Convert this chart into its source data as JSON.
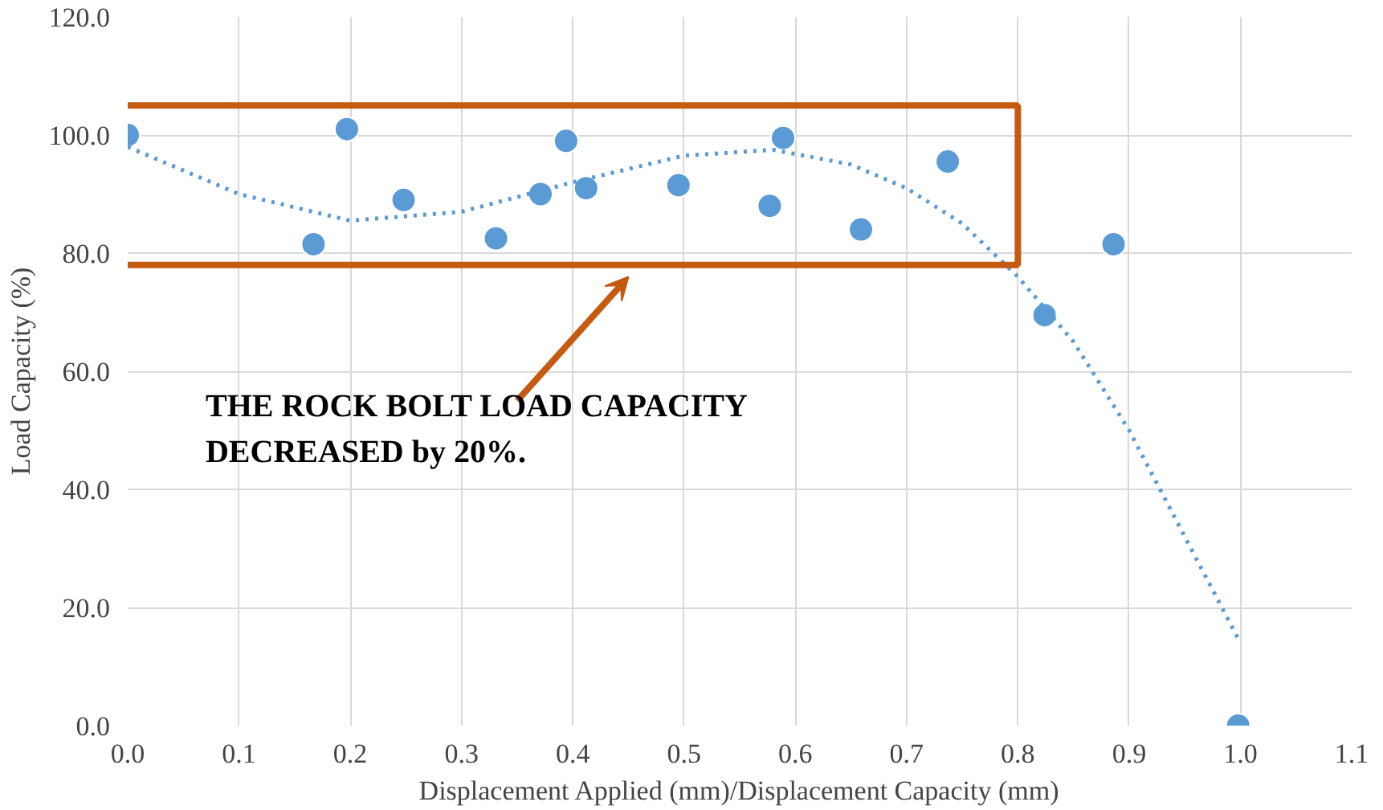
{
  "chart_data": {
    "type": "scatter",
    "xlabel": "Displacement Applied (mm)/Displacement Capacity (mm)",
    "ylabel": "Load Capacity (%)",
    "xlim": [
      0,
      1.1
    ],
    "ylim": [
      0,
      120
    ],
    "xticks": [
      {
        "value": 0,
        "label": "0.0"
      },
      {
        "value": 0.1,
        "label": "0.1"
      },
      {
        "value": 0.2,
        "label": "0.2"
      },
      {
        "value": 0.3,
        "label": "0.3"
      },
      {
        "value": 0.4,
        "label": "0.4"
      },
      {
        "value": 0.5,
        "label": "0.5"
      },
      {
        "value": 0.6,
        "label": "0.6"
      },
      {
        "value": 0.7,
        "label": "0.7"
      },
      {
        "value": 0.8,
        "label": "0.8"
      },
      {
        "value": 0.9,
        "label": "0.9"
      },
      {
        "value": 1.0,
        "label": "1.0"
      },
      {
        "value": 1.1,
        "label": "1.1"
      }
    ],
    "yticks": [
      {
        "value": 0,
        "label": "0.0"
      },
      {
        "value": 20,
        "label": "20.0"
      },
      {
        "value": 40,
        "label": "40.0"
      },
      {
        "value": 60,
        "label": "60.0"
      },
      {
        "value": 80,
        "label": "80.0"
      },
      {
        "value": 100,
        "label": "100.0"
      },
      {
        "value": 120,
        "label": "120.0"
      }
    ],
    "grid": true,
    "series": [
      {
        "marker": "circle",
        "color": "#5b9bd5",
        "x": [
          0.0,
          0.167,
          0.197,
          0.248,
          0.331,
          0.371,
          0.394,
          0.412,
          0.495,
          0.577,
          0.589,
          0.659,
          0.737,
          0.824,
          0.886,
          0.998
        ],
        "values": [
          100,
          81.5,
          101,
          89,
          82.5,
          90,
          99,
          91,
          91.5,
          88,
          99.5,
          84,
          95.5,
          69.5,
          81.5,
          0
        ]
      },
      {
        "type": "line",
        "line_style": "dotted",
        "color": "#5b9bd5",
        "x": [
          0,
          0.1,
          0.2,
          0.3,
          0.4,
          0.5,
          0.58,
          0.65,
          0.7,
          0.75,
          0.8,
          0.85,
          0.9,
          0.95,
          1.0
        ],
        "values": [
          98,
          90,
          85.5,
          87,
          92,
          96.5,
          97.5,
          95,
          91,
          85,
          76,
          65,
          50,
          32,
          14
        ]
      }
    ],
    "annotations": [
      "THE ROCK BOLT LOAD CAPACITY\nDECREASED by 20%."
    ]
  }
}
